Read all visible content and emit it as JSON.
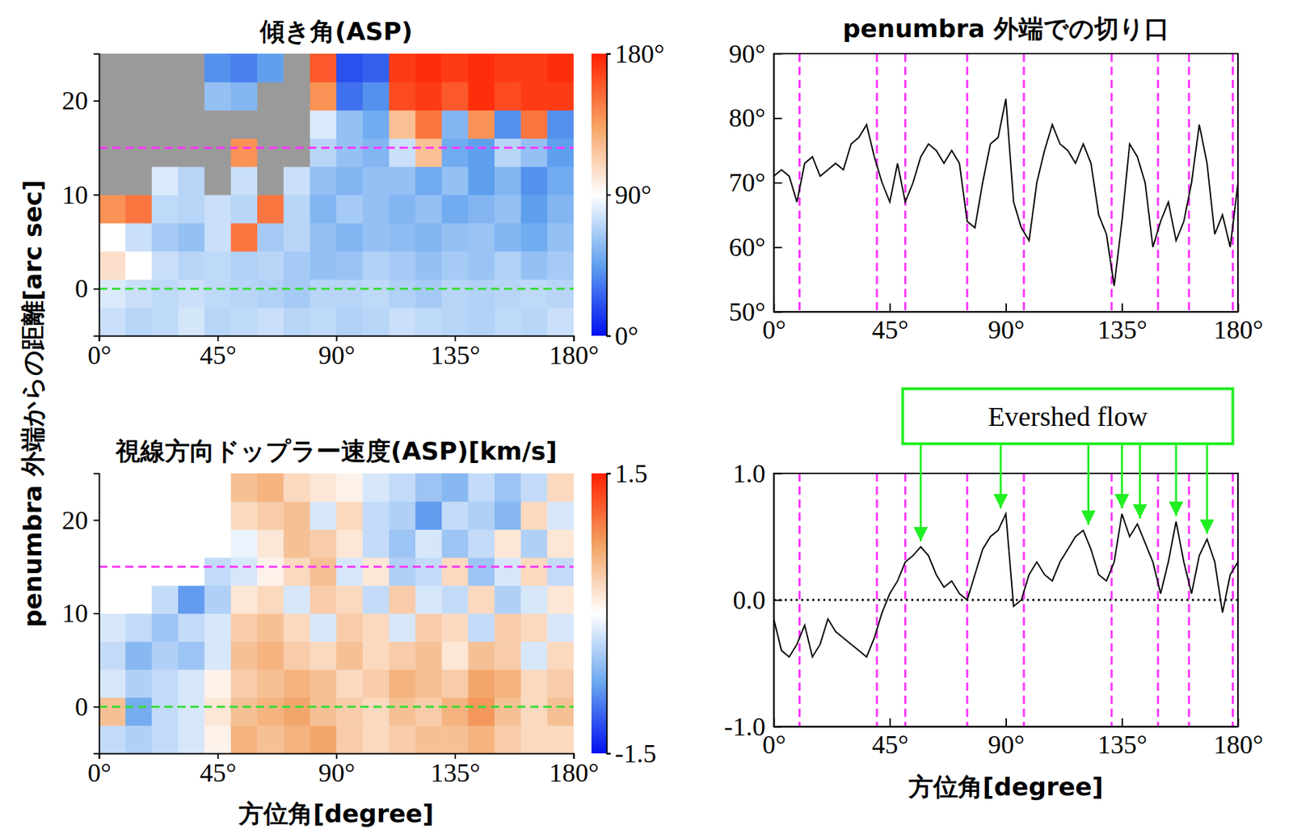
{
  "chart_data": [
    {
      "type": "heatmap",
      "title": "傾き角(ASP)",
      "ylabel": "penumbra 外端からの距離[arc sec]",
      "x_edges": [
        0,
        10,
        20,
        30,
        40,
        50,
        60,
        70,
        80,
        90,
        100,
        110,
        120,
        130,
        140,
        150,
        160,
        170,
        180
      ],
      "y_edges": [
        -5,
        -2,
        1,
        4,
        7,
        10,
        13,
        16,
        19,
        22,
        25
      ],
      "cells": [
        [
          75,
          70,
          72,
          78,
          70,
          72,
          75,
          70,
          72,
          68,
          70,
          75,
          72,
          70,
          68,
          72,
          70,
          75
        ],
        [
          80,
          75,
          72,
          75,
          72,
          70,
          68,
          65,
          70,
          70,
          72,
          68,
          65,
          70,
          68,
          70,
          72,
          70
        ],
        [
          105,
          90,
          75,
          70,
          72,
          68,
          70,
          65,
          60,
          62,
          68,
          65,
          60,
          65,
          62,
          68,
          60,
          65
        ],
        [
          90,
          75,
          65,
          60,
          75,
          150,
          65,
          70,
          60,
          55,
          60,
          58,
          55,
          60,
          62,
          55,
          50,
          60
        ],
        [
          140,
          150,
          72,
          70,
          75,
          70,
          150,
          70,
          55,
          65,
          60,
          55,
          60,
          50,
          55,
          60,
          45,
          55
        ],
        [
          null,
          null,
          80,
          70,
          null,
          75,
          null,
          75,
          60,
          55,
          60,
          60,
          50,
          60,
          45,
          55,
          40,
          50
        ],
        [
          null,
          null,
          null,
          null,
          null,
          140,
          null,
          null,
          70,
          60,
          55,
          75,
          120,
          50,
          45,
          70,
          60,
          45
        ],
        [
          null,
          null,
          null,
          null,
          null,
          null,
          null,
          null,
          80,
          60,
          50,
          120,
          150,
          55,
          140,
          40,
          150,
          40
        ],
        [
          null,
          null,
          null,
          null,
          60,
          55,
          null,
          null,
          140,
          30,
          40,
          165,
          170,
          160,
          175,
          165,
          170,
          170
        ],
        [
          null,
          null,
          null,
          null,
          40,
          35,
          45,
          null,
          160,
          20,
          25,
          170,
          175,
          170,
          175,
          170,
          170,
          175
        ]
      ],
      "xlim": [
        0,
        180
      ],
      "ylim": [
        -5,
        25
      ],
      "xticks": [
        {
          "value": 0,
          "label": "0°"
        },
        {
          "value": 45,
          "label": "45°"
        },
        {
          "value": 90,
          "label": "90°"
        },
        {
          "value": 135,
          "label": "135°"
        },
        {
          "value": 180,
          "label": "180°"
        }
      ],
      "yticks": [
        0,
        10,
        20
      ],
      "colorbar": {
        "range": [
          0,
          180
        ],
        "ticks": [
          {
            "value": 0,
            "label": "0°"
          },
          {
            "value": 90,
            "label": "90°"
          },
          {
            "value": 180,
            "label": "180°"
          }
        ],
        "colors": [
          "#0010f0",
          "#5fa0ee",
          "#ffffff",
          "#f7a060",
          "#ff2000"
        ]
      },
      "reference_lines": [
        {
          "y": 15,
          "color": "#ff33ff"
        },
        {
          "y": 0,
          "color": "#33dd33"
        }
      ]
    },
    {
      "type": "heatmap",
      "title": "視線方向ドップラー速度(ASP)[km/s]",
      "xlabel": "方位角[degree]",
      "x_edges": [
        0,
        10,
        20,
        30,
        40,
        50,
        60,
        70,
        80,
        90,
        100,
        110,
        120,
        130,
        140,
        150,
        160,
        170,
        180
      ],
      "y_edges": [
        -5,
        -2,
        1,
        4,
        7,
        10,
        13,
        16,
        19,
        22,
        25
      ],
      "cells": [
        [
          -0.3,
          -0.4,
          -0.3,
          -0.2,
          0.1,
          0.6,
          0.5,
          0.6,
          0.7,
          0.4,
          0.3,
          0.4,
          0.5,
          0.5,
          0.6,
          0.4,
          0.3,
          0.3
        ],
        [
          0.5,
          -0.7,
          -0.3,
          -0.2,
          0.2,
          0.5,
          0.6,
          0.7,
          0.5,
          0.4,
          0.3,
          0.5,
          0.4,
          0.6,
          0.8,
          0.5,
          0.3,
          0.5
        ],
        [
          -0.2,
          -0.4,
          -0.3,
          -0.2,
          0.1,
          0.4,
          0.5,
          0.6,
          0.5,
          0.3,
          0.4,
          0.6,
          0.5,
          0.4,
          0.7,
          0.6,
          0.3,
          0.4
        ],
        [
          -0.3,
          -0.6,
          -0.4,
          -0.5,
          -0.2,
          0.5,
          0.6,
          0.4,
          0.3,
          0.5,
          0.3,
          0.4,
          0.5,
          0.2,
          0.5,
          0.4,
          -0.2,
          0.3
        ],
        [
          -0.2,
          -0.3,
          -0.5,
          -0.3,
          -0.2,
          0.4,
          0.5,
          0.3,
          -0.2,
          0.4,
          0.3,
          -0.2,
          0.4,
          0.3,
          -0.3,
          0.4,
          0.3,
          -0.2
        ],
        [
          0,
          0,
          -0.3,
          -0.8,
          -0.4,
          0.2,
          0.3,
          -0.2,
          0.4,
          0.3,
          -0.3,
          0.4,
          -0.2,
          -0.3,
          0.3,
          -0.4,
          -0.2,
          0.2
        ],
        [
          0,
          0,
          0,
          0,
          -0.3,
          -0.2,
          0.1,
          0.3,
          0.5,
          -0.2,
          0.2,
          -0.4,
          -0.3,
          0.3,
          -0.5,
          -0.2,
          0.3,
          -0.3
        ],
        [
          0,
          0,
          0,
          0,
          0,
          -0.1,
          0.2,
          0.5,
          0.4,
          0.2,
          -0.3,
          -0.5,
          -0.2,
          -0.5,
          -0.3,
          0.2,
          -0.4,
          0.2
        ],
        [
          0,
          0,
          0,
          0,
          0,
          0.3,
          0.4,
          0.5,
          -0.2,
          0.3,
          -0.3,
          -0.4,
          -0.8,
          -0.3,
          -0.4,
          -0.6,
          0.3,
          -0.2
        ],
        [
          0,
          0,
          0,
          0,
          0,
          0.5,
          0.6,
          0.3,
          0.2,
          0.1,
          -0.2,
          -0.3,
          -0.5,
          -0.6,
          -0.3,
          -0.5,
          -0.3,
          0.3
        ]
      ],
      "xlim": [
        0,
        180
      ],
      "ylim": [
        -5,
        25
      ],
      "xticks": [
        {
          "value": 0,
          "label": "0°"
        },
        {
          "value": 45,
          "label": "45°"
        },
        {
          "value": 90,
          "label": "90°"
        },
        {
          "value": 135,
          "label": "135°"
        },
        {
          "value": 180,
          "label": "180°"
        }
      ],
      "yticks": [
        0,
        10,
        20
      ],
      "colorbar": {
        "range": [
          -1.5,
          1.5
        ],
        "ticks": [
          -1.5,
          1.5
        ],
        "colors": [
          "#0010f0",
          "#6aa6ee",
          "#ffffff",
          "#f2a060",
          "#ff2000"
        ]
      },
      "reference_lines": [
        {
          "y": 15,
          "color": "#ff33ff"
        },
        {
          "y": 0,
          "color": "#33dd33"
        }
      ]
    },
    {
      "type": "line",
      "title": "penumbra 外端での切り口",
      "color": "#000000",
      "x": [
        0,
        3,
        6,
        9,
        12,
        15,
        18,
        21,
        24,
        27,
        30,
        33,
        36,
        39,
        42,
        45,
        48,
        51,
        54,
        57,
        60,
        63,
        66,
        69,
        72,
        75,
        78,
        81,
        84,
        87,
        90,
        93,
        96,
        99,
        102,
        105,
        108,
        111,
        114,
        117,
        120,
        123,
        126,
        129,
        132,
        135,
        138,
        141,
        144,
        147,
        150,
        153,
        156,
        159,
        162,
        165,
        168,
        171,
        174,
        177,
        180
      ],
      "values": [
        71,
        72,
        71,
        67,
        73,
        74,
        71,
        72,
        73,
        72,
        76,
        77,
        79,
        74,
        70,
        67,
        73,
        67,
        70,
        74,
        76,
        75,
        73,
        75,
        73,
        64,
        63,
        70,
        76,
        77,
        83,
        67,
        63,
        61,
        70,
        75,
        79,
        76,
        75,
        73,
        76,
        73,
        65,
        62,
        54,
        64,
        76,
        74,
        70,
        60,
        64,
        67,
        61,
        64,
        70,
        79,
        73,
        62,
        65,
        60,
        70
      ],
      "xlim": [
        0,
        180
      ],
      "ylim": [
        50,
        90
      ],
      "xticks": [
        {
          "value": 0,
          "label": "0°"
        },
        {
          "value": 45,
          "label": "45°"
        },
        {
          "value": 90,
          "label": "90°"
        },
        {
          "value": 135,
          "label": "135°"
        },
        {
          "value": 180,
          "label": "180°"
        }
      ],
      "yticks": [
        {
          "value": 50,
          "label": "50°"
        },
        {
          "value": 60,
          "label": "60°"
        },
        {
          "value": 70,
          "label": "70°"
        },
        {
          "value": 80,
          "label": "80°"
        },
        {
          "value": 90,
          "label": "90°"
        }
      ],
      "vlines": {
        "x": [
          10,
          40,
          51,
          75,
          97,
          131,
          149,
          161,
          178
        ],
        "color": "#ff33ff",
        "line_style": "dashed"
      }
    },
    {
      "type": "line",
      "xlabel": "方位角[degree]",
      "color": "#000000",
      "x": [
        0,
        3,
        6,
        9,
        12,
        15,
        18,
        21,
        24,
        27,
        30,
        33,
        36,
        39,
        42,
        45,
        48,
        51,
        54,
        57,
        60,
        63,
        66,
        69,
        72,
        75,
        78,
        81,
        84,
        87,
        90,
        93,
        96,
        99,
        102,
        105,
        108,
        111,
        114,
        117,
        120,
        123,
        126,
        129,
        132,
        135,
        138,
        141,
        144,
        147,
        150,
        153,
        156,
        159,
        162,
        165,
        168,
        171,
        174,
        177,
        180
      ],
      "values": [
        -0.15,
        -0.4,
        -0.45,
        -0.35,
        -0.2,
        -0.45,
        -0.35,
        -0.15,
        -0.25,
        -0.3,
        -0.35,
        -0.4,
        -0.45,
        -0.3,
        -0.1,
        0.05,
        0.15,
        0.3,
        0.35,
        0.42,
        0.35,
        0.2,
        0.1,
        0.15,
        0.05,
        0.0,
        0.2,
        0.4,
        0.5,
        0.55,
        0.68,
        -0.05,
        0.0,
        0.2,
        0.3,
        0.2,
        0.15,
        0.3,
        0.4,
        0.5,
        0.55,
        0.4,
        0.2,
        0.15,
        0.3,
        0.68,
        0.5,
        0.6,
        0.45,
        0.3,
        0.05,
        0.3,
        0.62,
        0.3,
        0.05,
        0.35,
        0.48,
        0.3,
        -0.1,
        0.2,
        0.3
      ],
      "xlim": [
        0,
        180
      ],
      "ylim": [
        -1,
        1
      ],
      "xticks": [
        {
          "value": 0,
          "label": "0°"
        },
        {
          "value": 45,
          "label": "45°"
        },
        {
          "value": 90,
          "label": "90°"
        },
        {
          "value": 135,
          "label": "135°"
        },
        {
          "value": 180,
          "label": "180°"
        }
      ],
      "yticks": [
        {
          "value": -1,
          "label": "-1.0"
        },
        {
          "value": 0,
          "label": "0.0"
        },
        {
          "value": 1,
          "label": "1.0"
        }
      ],
      "vlines": {
        "x": [
          10,
          40,
          51,
          75,
          97,
          131,
          149,
          161,
          178
        ],
        "color": "#ff33ff",
        "line_style": "dashed"
      },
      "reference_lines": [
        {
          "y": 0,
          "color": "#000000",
          "line_style": "dotted"
        }
      ],
      "annotations": [
        {
          "text": "Evershed flow",
          "x": [
            57,
            88,
            122,
            135,
            142,
            156,
            168
          ],
          "y": [
            0.42,
            0.68,
            0.55,
            0.68,
            0.6,
            0.62,
            0.48
          ],
          "color": "#22ee22"
        }
      ]
    }
  ]
}
